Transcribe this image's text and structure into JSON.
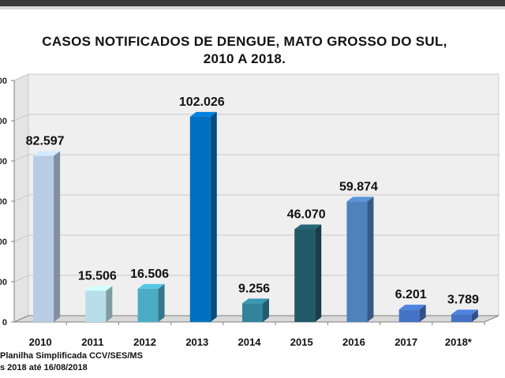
{
  "chart_title": {
    "line1": "CASOS NOTIFICADOS  DE DENGUE, MATO GROSSO DO SUL,",
    "line2": "2010 A 2018."
  },
  "footnote": {
    "source": "Planilha Simplificada CCV/SES/MS",
    "date": "s 2018 até 16/08/2018"
  },
  "colors": {
    "axis": "#7f7f7f",
    "wall": "#efefef",
    "grid": "#c8c8c8"
  },
  "chart_data": {
    "type": "bar",
    "title": "CASOS NOTIFICADOS  DE DENGUE, MATO GROSSO DO SUL, 2010 A 2018.",
    "categories": [
      "2010",
      "2011",
      "2012",
      "2013",
      "2014",
      "2015",
      "2016",
      "2017",
      "2018*"
    ],
    "values": [
      82597,
      15506,
      16506,
      102026,
      9256,
      46070,
      59874,
      6201,
      3789
    ],
    "data_labels": [
      "82.597",
      "15.506",
      "16.506",
      "102.026",
      "9.256",
      "46.070",
      "59.874",
      "6.201",
      "3.789"
    ],
    "bar_colors": [
      "#b8cce4",
      "#b7dee8",
      "#4bacc6",
      "#0070c0",
      "#31849b",
      "#215968",
      "#4f81bd",
      "#4472c4",
      "#4472c4"
    ],
    "ylim": [
      0,
      120000
    ],
    "yticks": [
      0,
      20000,
      40000,
      60000,
      80000,
      100000,
      120000
    ],
    "ytick_labels_visible": [
      "0",
      "00",
      "00",
      "00",
      "00",
      "00",
      "00"
    ],
    "grid": true,
    "legend": "none",
    "three_d": true
  }
}
